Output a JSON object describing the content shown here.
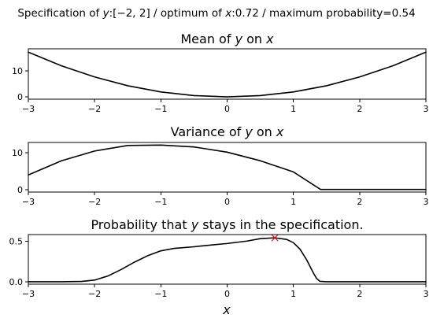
{
  "figure": {
    "suptitle_parts": [
      "Specification of ",
      "y",
      ":[−2, 2] / optimum of ",
      "x",
      ":0.72 / maximum probability=0.54"
    ],
    "xlabel": "x"
  },
  "chart_data": [
    {
      "type": "line",
      "title_parts": [
        "Mean of ",
        "y",
        " on ",
        "x"
      ],
      "xlim": [
        -3,
        3
      ],
      "ylim": [
        -0.9,
        18.6
      ],
      "xticks": [
        -3,
        -2,
        -1,
        0,
        1,
        2,
        3
      ],
      "xtick_labels": [
        "−3",
        "−2",
        "−1",
        "0",
        "1",
        "2",
        "3"
      ],
      "yticks": [
        0,
        10
      ],
      "ytick_labels": [
        "0",
        "10"
      ],
      "series": [
        {
          "color": "#000000",
          "x": [
            -3,
            -2.5,
            -2,
            -1.5,
            -1,
            -0.5,
            0,
            0.5,
            1,
            1.5,
            2,
            2.5,
            3
          ],
          "y": [
            17.3,
            12.0,
            7.7,
            4.3,
            1.9,
            0.5,
            0.0,
            0.5,
            1.9,
            4.3,
            7.7,
            12.0,
            17.3
          ]
        }
      ]
    },
    {
      "type": "line",
      "title_parts": [
        "Variance of ",
        "y",
        " on ",
        "x"
      ],
      "xlim": [
        -3,
        3
      ],
      "ylim": [
        -0.6,
        12.7
      ],
      "xticks": [
        -3,
        -2,
        -1,
        0,
        1,
        2,
        3
      ],
      "xtick_labels": [
        "−3",
        "−2",
        "−1",
        "0",
        "1",
        "2",
        "3"
      ],
      "yticks": [
        0,
        10
      ],
      "ytick_labels": [
        "0",
        "10"
      ],
      "series": [
        {
          "color": "#000000",
          "x": [
            -3,
            -2.5,
            -2,
            -1.5,
            -1,
            -0.5,
            0,
            0.5,
            1,
            1.41,
            1.5,
            2,
            2.5,
            3
          ],
          "y": [
            4.0,
            7.8,
            10.4,
            11.9,
            12.0,
            11.5,
            10.1,
            7.8,
            4.8,
            0.1,
            0.1,
            0.1,
            0.1,
            0.1
          ]
        }
      ]
    },
    {
      "type": "line",
      "title_parts": [
        "Probability that ",
        "y",
        " stays in the specification."
      ],
      "xlim": [
        -3,
        3
      ],
      "ylim": [
        -0.03,
        0.58
      ],
      "xticks": [
        -3,
        -2,
        -1,
        0,
        1,
        2,
        3
      ],
      "xtick_labels": [
        "−3",
        "−2",
        "−1",
        "0",
        "1",
        "2",
        "3"
      ],
      "yticks": [
        0.0,
        0.5
      ],
      "ytick_labels": [
        "0.0",
        "0.5"
      ],
      "series": [
        {
          "color": "#000000",
          "x": [
            -3,
            -2.5,
            -2.2,
            -2,
            -1.8,
            -1.6,
            -1.4,
            -1.2,
            -1,
            -0.8,
            -0.5,
            -0.2,
            0,
            0.3,
            0.5,
            0.72,
            0.9,
            1.0,
            1.1,
            1.2,
            1.3,
            1.35,
            1.4,
            1.5,
            2,
            2.5,
            3
          ],
          "y": [
            0.0,
            0.0,
            0.003,
            0.02,
            0.07,
            0.15,
            0.24,
            0.32,
            0.38,
            0.41,
            0.43,
            0.455,
            0.47,
            0.5,
            0.53,
            0.54,
            0.52,
            0.48,
            0.4,
            0.27,
            0.11,
            0.04,
            0.005,
            0.0,
            0.0,
            0.0,
            0.0
          ]
        }
      ],
      "annotations": [
        {
          "marker": "x",
          "color": "#ff0000",
          "x": 0.72,
          "y": 0.54
        }
      ]
    }
  ]
}
